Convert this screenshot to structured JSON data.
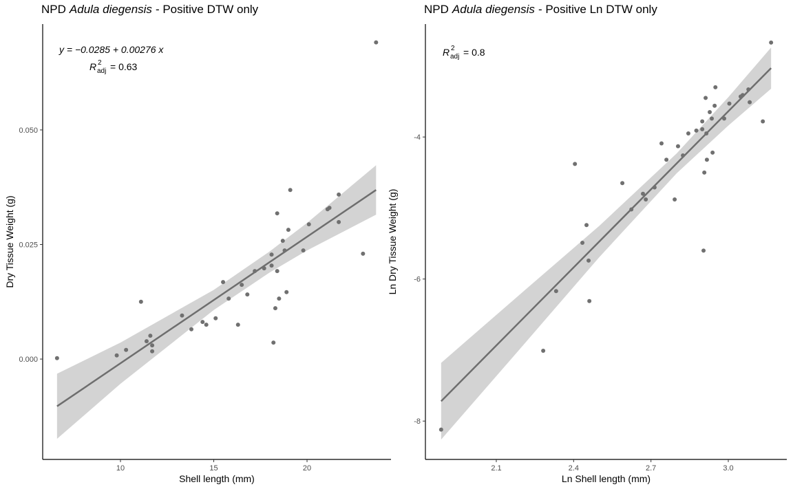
{
  "chart_data": [
    {
      "type": "scatter",
      "title": [
        "NPD",
        "Adula diegensis",
        "- Positive DTW only"
      ],
      "xlabel": "Shell length (mm)",
      "ylabel": "Dry Tissue Weight (g)",
      "equation": "y = −0.0285 + 0.00276 x",
      "r2": {
        "symbol": "R",
        "sup": "2",
        "sub": "adj",
        "text": "= 0.63"
      },
      "xlim": [
        5.83,
        24.5
      ],
      "ylim": [
        -0.0219,
        0.0731
      ],
      "xticks": [
        10,
        15,
        20
      ],
      "yticks": [
        {
          "value": 0,
          "label": "0.000"
        },
        {
          "value": 0.025,
          "label": "0.025"
        },
        {
          "value": 0.05,
          "label": "0.050"
        }
      ],
      "color": "#707070",
      "x": [
        6.6,
        9.8,
        10.3,
        11.1,
        11.4,
        11.6,
        11.7,
        11.7,
        13.3,
        13.8,
        14.4,
        14.6,
        15.1,
        15.5,
        15.8,
        16.3,
        16.5,
        16.8,
        17.2,
        17.7,
        18.1,
        18.1,
        18.2,
        18.3,
        18.4,
        18.4,
        18.5,
        18.7,
        18.8,
        18.9,
        19.0,
        19.1,
        19.8,
        20.1,
        21.1,
        21.2,
        21.7,
        21.7,
        23.0,
        23.7
      ],
      "values": [
        0.0002,
        0.0008,
        0.002,
        0.0125,
        0.0039,
        0.0051,
        0.003,
        0.0017,
        0.0095,
        0.0065,
        0.0081,
        0.0075,
        0.0089,
        0.0168,
        0.0132,
        0.0075,
        0.0162,
        0.0141,
        0.0192,
        0.0198,
        0.0228,
        0.0204,
        0.0036,
        0.0111,
        0.0318,
        0.0192,
        0.0132,
        0.0258,
        0.0237,
        0.0146,
        0.0282,
        0.0369,
        0.0237,
        0.0294,
        0.0327,
        0.033,
        0.0359,
        0.0299,
        0.023,
        0.0691
      ],
      "fit": {
        "x": [
          6.6,
          23.7
        ],
        "y": [
          -0.0103,
          0.0369
        ],
        "color": "#6e6e6e"
      },
      "band": {
        "x": [
          6.6,
          10,
          15,
          18,
          20,
          23.7
        ],
        "lower": [
          -0.0174,
          -0.0054,
          0.0107,
          0.0189,
          0.0237,
          0.0315
        ],
        "upper": [
          -0.0032,
          0.0036,
          0.0151,
          0.0235,
          0.0297,
          0.0423
        ],
        "color": "#d3d3d3"
      }
    },
    {
      "type": "scatter",
      "title": [
        "NPD",
        "Adula diegensis",
        "- Positive Ln DTW only"
      ],
      "xlabel": "Ln Shell length (mm)",
      "ylabel": "Ln Dry Tissue Weight (g)",
      "r2": {
        "symbol": "R",
        "sup": "2",
        "sub": "adj",
        "text": "= 0.8"
      },
      "xlim": [
        1.825,
        3.227
      ],
      "ylim": [
        -8.54,
        -2.41
      ],
      "xticks": [
        2.1,
        2.4,
        2.7,
        {
          "value": 3.0,
          "label": "3.0"
        }
      ],
      "yticks": [
        -8,
        -6,
        -4
      ],
      "color": "#707070",
      "x": [
        1.886,
        2.282,
        2.332,
        2.405,
        2.434,
        2.45,
        2.458,
        2.461,
        2.589,
        2.624,
        2.669,
        2.68,
        2.714,
        2.741,
        2.76,
        2.792,
        2.805,
        2.824,
        2.845,
        2.876,
        2.899,
        2.899,
        2.904,
        2.907,
        2.912,
        2.915,
        2.917,
        2.928,
        2.936,
        2.939,
        2.947,
        2.95,
        2.984,
        3.004,
        3.048,
        3.056,
        3.078,
        3.083,
        3.134,
        3.166
      ],
      "values": [
        -8.12,
        -7.01,
        -6.17,
        -4.38,
        -5.49,
        -5.24,
        -5.74,
        -6.31,
        -4.65,
        -5.02,
        -4.8,
        -4.88,
        -4.71,
        -4.09,
        -4.32,
        -4.88,
        -4.13,
        -4.26,
        -3.95,
        -3.91,
        -3.78,
        -3.89,
        -5.6,
        -4.5,
        -3.45,
        -3.95,
        -4.32,
        -3.65,
        -3.74,
        -4.22,
        -3.56,
        -3.3,
        -3.74,
        -3.53,
        -3.43,
        -3.41,
        -3.33,
        -3.51,
        -3.78,
        -2.67
      ],
      "fit": {
        "x": [
          1.886,
          3.166
        ],
        "y": [
          -7.72,
          -3.03
        ],
        "color": "#6e6e6e"
      },
      "band": {
        "x": [
          1.886,
          2.2,
          2.5,
          2.8,
          3.0,
          3.166
        ],
        "lower": [
          -8.26,
          -6.95,
          -5.69,
          -4.51,
          -3.84,
          -3.32
        ],
        "upper": [
          -7.18,
          -6.19,
          -5.25,
          -4.23,
          -3.44,
          -2.74
        ],
        "color": "#d3d3d3"
      }
    }
  ]
}
